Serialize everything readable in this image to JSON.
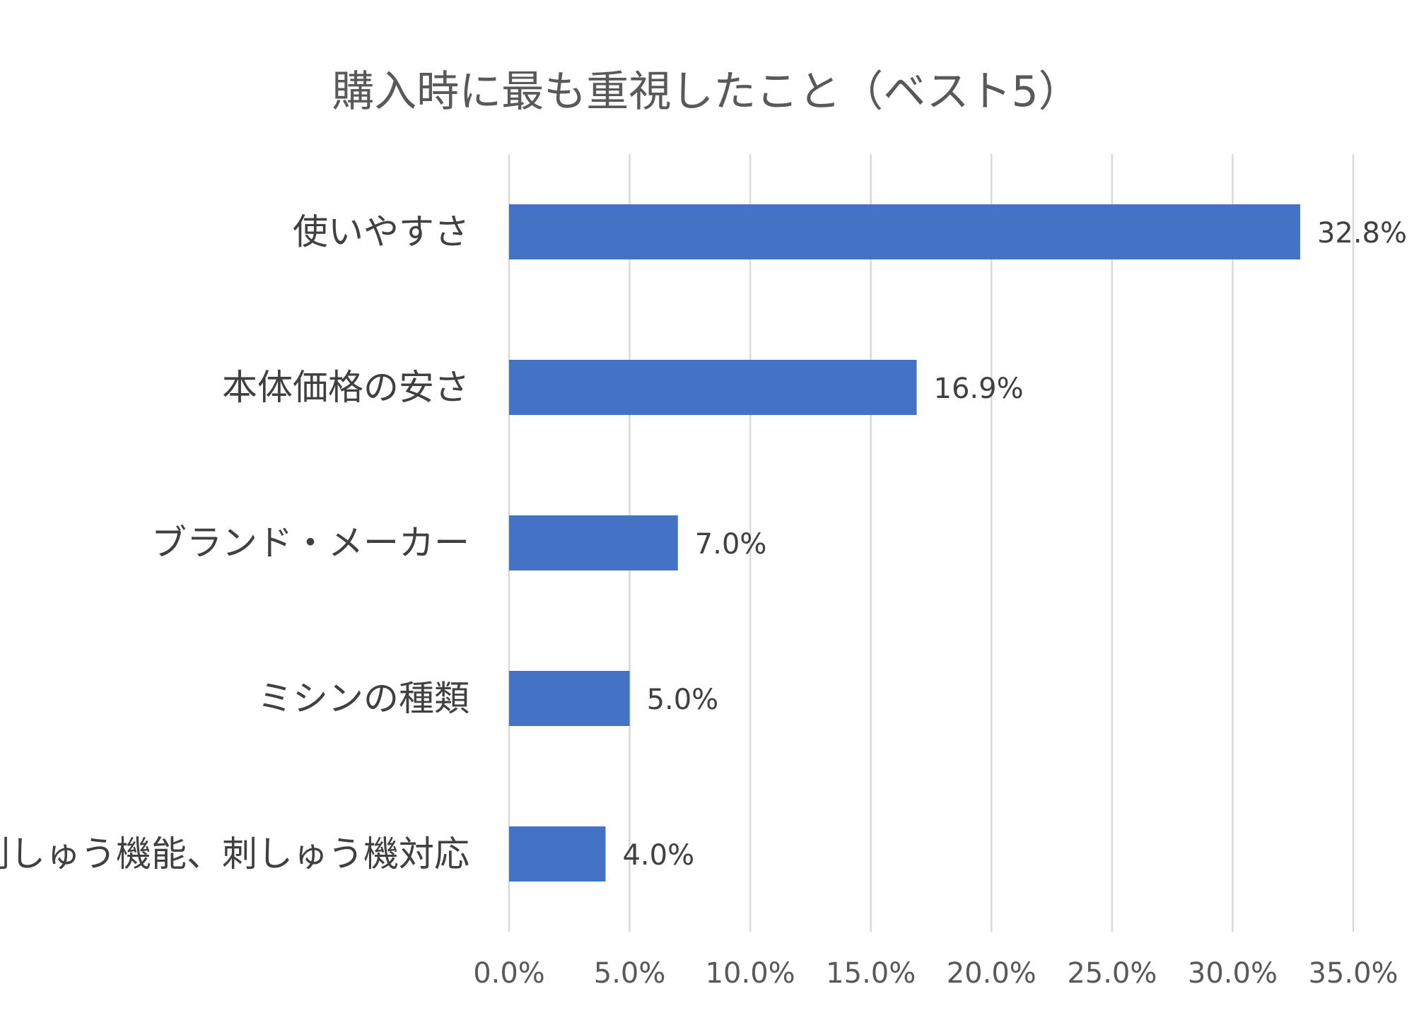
{
  "chart_data": {
    "type": "bar",
    "orientation": "horizontal",
    "title": "購入時に最も重視したこと（ベスト5）",
    "categories": [
      "使いやすさ",
      "本体価格の安さ",
      "ブランド・メーカー",
      "ミシンの種類",
      "刺しゅう機能、刺しゅう機対応"
    ],
    "values": [
      32.8,
      16.9,
      7.0,
      5.0,
      4.0
    ],
    "data_labels": [
      "32.8%",
      "16.9%",
      "7.0%",
      "5.0%",
      "4.0%"
    ],
    "xlim": [
      0,
      35
    ],
    "x_ticks": [
      "0.0%",
      "5.0%",
      "10.0%",
      "15.0%",
      "20.0%",
      "25.0%",
      "30.0%",
      "35.0%"
    ],
    "grid": true,
    "legend": "none",
    "bar_color": "#4472C4"
  }
}
